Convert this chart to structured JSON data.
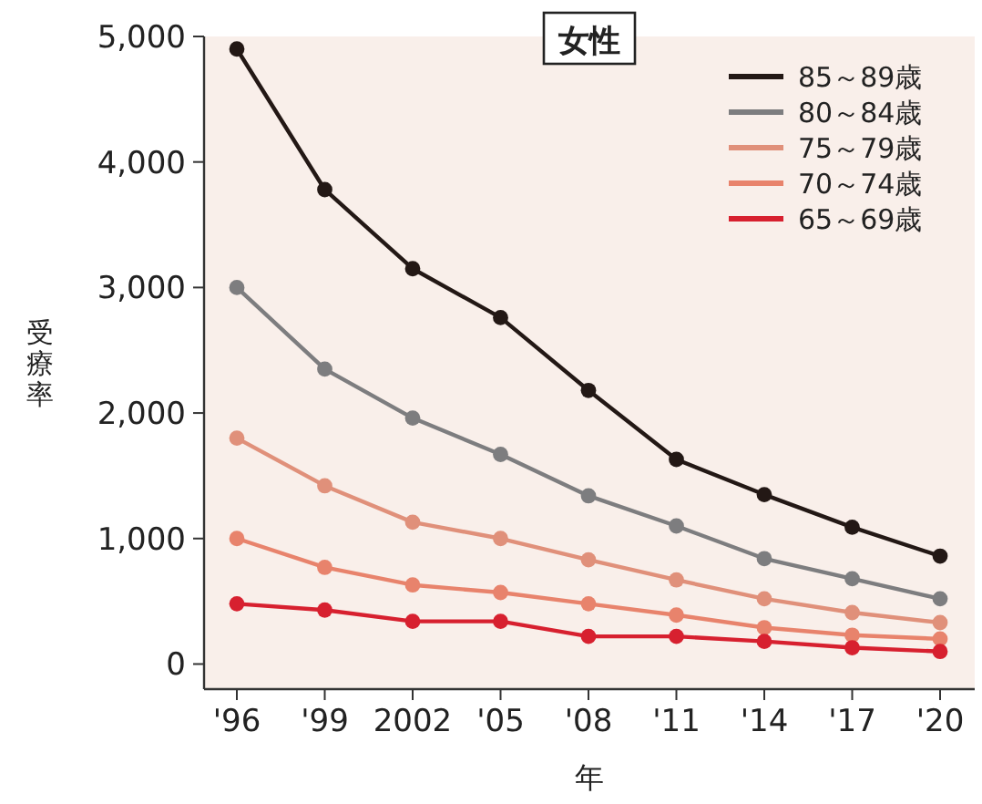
{
  "chart_data": {
    "type": "line",
    "title": "女性",
    "xlabel": "年",
    "ylabel": "受療率",
    "categories": [
      "'96",
      "'99",
      "2002",
      "'05",
      "'08",
      "'11",
      "'14",
      "'17",
      "'20"
    ],
    "ylim": [
      -200,
      5000
    ],
    "yticks": [
      {
        "value": 0,
        "label": "0"
      },
      {
        "value": 1000,
        "label": "1,000"
      },
      {
        "value": 2000,
        "label": "2,000"
      },
      {
        "value": 3000,
        "label": "3,000"
      },
      {
        "value": 4000,
        "label": "4,000"
      },
      {
        "value": 5000,
        "label": "5,000"
      }
    ],
    "grid": false,
    "legend": "top right",
    "marker": "circle",
    "line_style": "solid",
    "series": [
      {
        "name": "85～89歳",
        "color": "#231815",
        "values": [
          4900,
          3780,
          3150,
          2760,
          2180,
          1630,
          1350,
          1090,
          860
        ]
      },
      {
        "name": "80～84歳",
        "color": "#7d7d7f",
        "values": [
          3000,
          2350,
          1960,
          1670,
          1340,
          1100,
          840,
          680,
          520
        ]
      },
      {
        "name": "75～79歳",
        "color": "#e0907a",
        "values": [
          1800,
          1420,
          1130,
          1000,
          830,
          670,
          520,
          410,
          330
        ]
      },
      {
        "name": "70～74歳",
        "color": "#e8836c",
        "values": [
          1000,
          770,
          630,
          570,
          480,
          390,
          290,
          230,
          200
        ]
      },
      {
        "name": "65～69歳",
        "color": "#d7202f",
        "values": [
          480,
          430,
          340,
          340,
          220,
          220,
          180,
          130,
          100
        ]
      }
    ]
  }
}
